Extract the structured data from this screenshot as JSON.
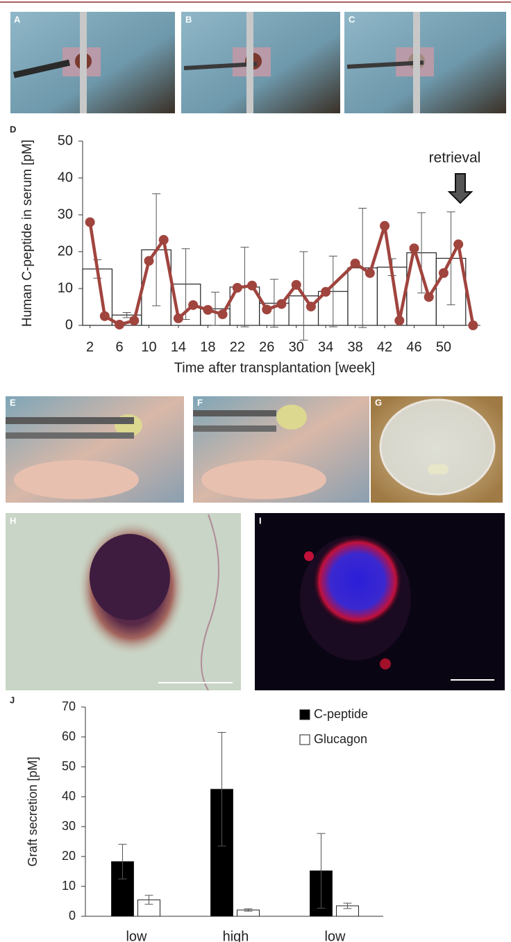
{
  "panel_labels": [
    "A",
    "B",
    "C",
    "D",
    "E",
    "F",
    "G",
    "H",
    "I",
    "J"
  ],
  "chart_data": [
    {
      "type": "bar_line",
      "ylabel": "Human C-peptide in serum [pM]",
      "xlabel": "Time after transplantation  [week]",
      "annotation": "retrieval",
      "xlim": [
        1,
        55
      ],
      "xticks": [
        2,
        6,
        10,
        14,
        18,
        22,
        26,
        30,
        34,
        38,
        42,
        46,
        50
      ],
      "ylim": [
        0,
        50
      ],
      "yticks": [
        0,
        10,
        20,
        30,
        40,
        50
      ],
      "series": [
        {
          "type": "bar",
          "color": "#ffffff",
          "bins": [
            1,
            5,
            9,
            13,
            17,
            21,
            25,
            29,
            33,
            37,
            41,
            45,
            49,
            53
          ],
          "values": [
            15.3,
            2.8,
            20.5,
            11.2,
            4.5,
            10.4,
            6,
            8,
            9.2,
            15.6,
            15.8,
            19.7,
            18.2
          ],
          "errors": [
            2.5,
            0.7,
            15.2,
            9.6,
            4.5,
            10.8,
            6.5,
            12,
            9.6,
            16.2,
            2.3,
            10.9,
            12.6
          ]
        },
        {
          "type": "line",
          "color": "#a0443e",
          "x": [
            2,
            4,
            6,
            8,
            10,
            12,
            14,
            16,
            18,
            20,
            22,
            24,
            26,
            28,
            30,
            32,
            34,
            38,
            40,
            42,
            44,
            46,
            48,
            50,
            52,
            54
          ],
          "values": [
            28,
            2.5,
            0.2,
            1.3,
            17.5,
            23.2,
            1.9,
            5.5,
            4.2,
            3,
            10.2,
            10.8,
            4.3,
            5.8,
            11,
            5.1,
            9.1,
            16.8,
            14.2,
            27,
            1.3,
            20.9,
            7.7,
            14.2,
            22,
            0
          ]
        }
      ]
    },
    {
      "type": "bar",
      "ylabel": "Graft secretion [pM]",
      "categories": [
        "low",
        "high",
        "low"
      ],
      "ylim": [
        0,
        70
      ],
      "yticks": [
        0,
        10,
        20,
        30,
        40,
        50,
        60,
        70
      ],
      "legend": "top-right",
      "series": [
        {
          "name": "C-peptide",
          "color": "#000000",
          "values": [
            18.3,
            42.5,
            15.2
          ],
          "errors": [
            5.8,
            19,
            12.5
          ]
        },
        {
          "name": "Glucagon",
          "color": "#ffffff",
          "values": [
            5.5,
            2.1,
            3.5
          ],
          "errors": [
            1.5,
            0.4,
            0.9
          ]
        }
      ]
    }
  ]
}
